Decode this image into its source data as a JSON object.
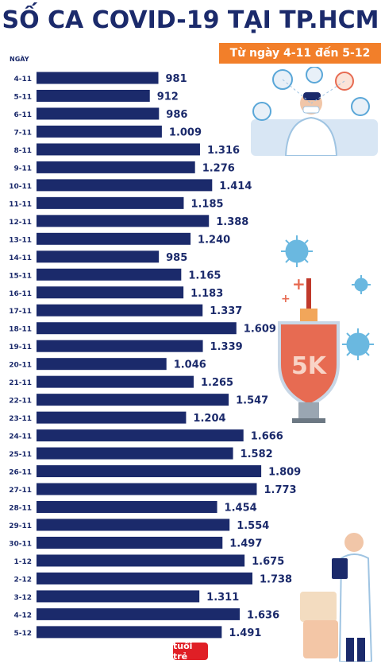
{
  "header": {
    "title": "SỐ CA COVID-19 TẠI TP.HCM",
    "subtitle": "Từ ngày 4-11 đến 5-12",
    "day_label": "NGÀY"
  },
  "shield_text": "5K",
  "logo_text": "tuổi trẻ",
  "colors": {
    "bar": "#1b2a6b",
    "accent": "#f27f2a",
    "title": "#1b2a6b"
  },
  "chart_data": {
    "type": "bar",
    "orientation": "horizontal",
    "categories": [
      "4-11",
      "5-11",
      "6-11",
      "7-11",
      "8-11",
      "9-11",
      "10-11",
      "11-11",
      "12-11",
      "13-11",
      "14-11",
      "15-11",
      "16-11",
      "17-11",
      "18-11",
      "19-11",
      "20-11",
      "21-11",
      "22-11",
      "23-11",
      "24-11",
      "25-11",
      "26-11",
      "27-11",
      "28-11",
      "29-11",
      "30-11",
      "1-12",
      "2-12",
      "3-12",
      "4-12",
      "5-12"
    ],
    "values": [
      981,
      912,
      986,
      1009,
      1316,
      1276,
      1414,
      1185,
      1388,
      1240,
      985,
      1165,
      1183,
      1337,
      1609,
      1339,
      1046,
      1265,
      1547,
      1204,
      1666,
      1582,
      1809,
      1773,
      1454,
      1554,
      1497,
      1675,
      1738,
      1311,
      1636,
      1491
    ],
    "value_labels": [
      "981",
      "912",
      "986",
      "1.009",
      "1.316",
      "1.276",
      "1.414",
      "1.185",
      "1.388",
      "1.240",
      "985",
      "1.165",
      "1.183",
      "1.337",
      "1.609",
      "1.339",
      "1.046",
      "1.265",
      "1.547",
      "1.204",
      "1.666",
      "1.582",
      "1.809",
      "1.773",
      "1.454",
      "1.554",
      "1.497",
      "1.675",
      "1.738",
      "1.311",
      "1.636",
      "1.491"
    ]
  }
}
